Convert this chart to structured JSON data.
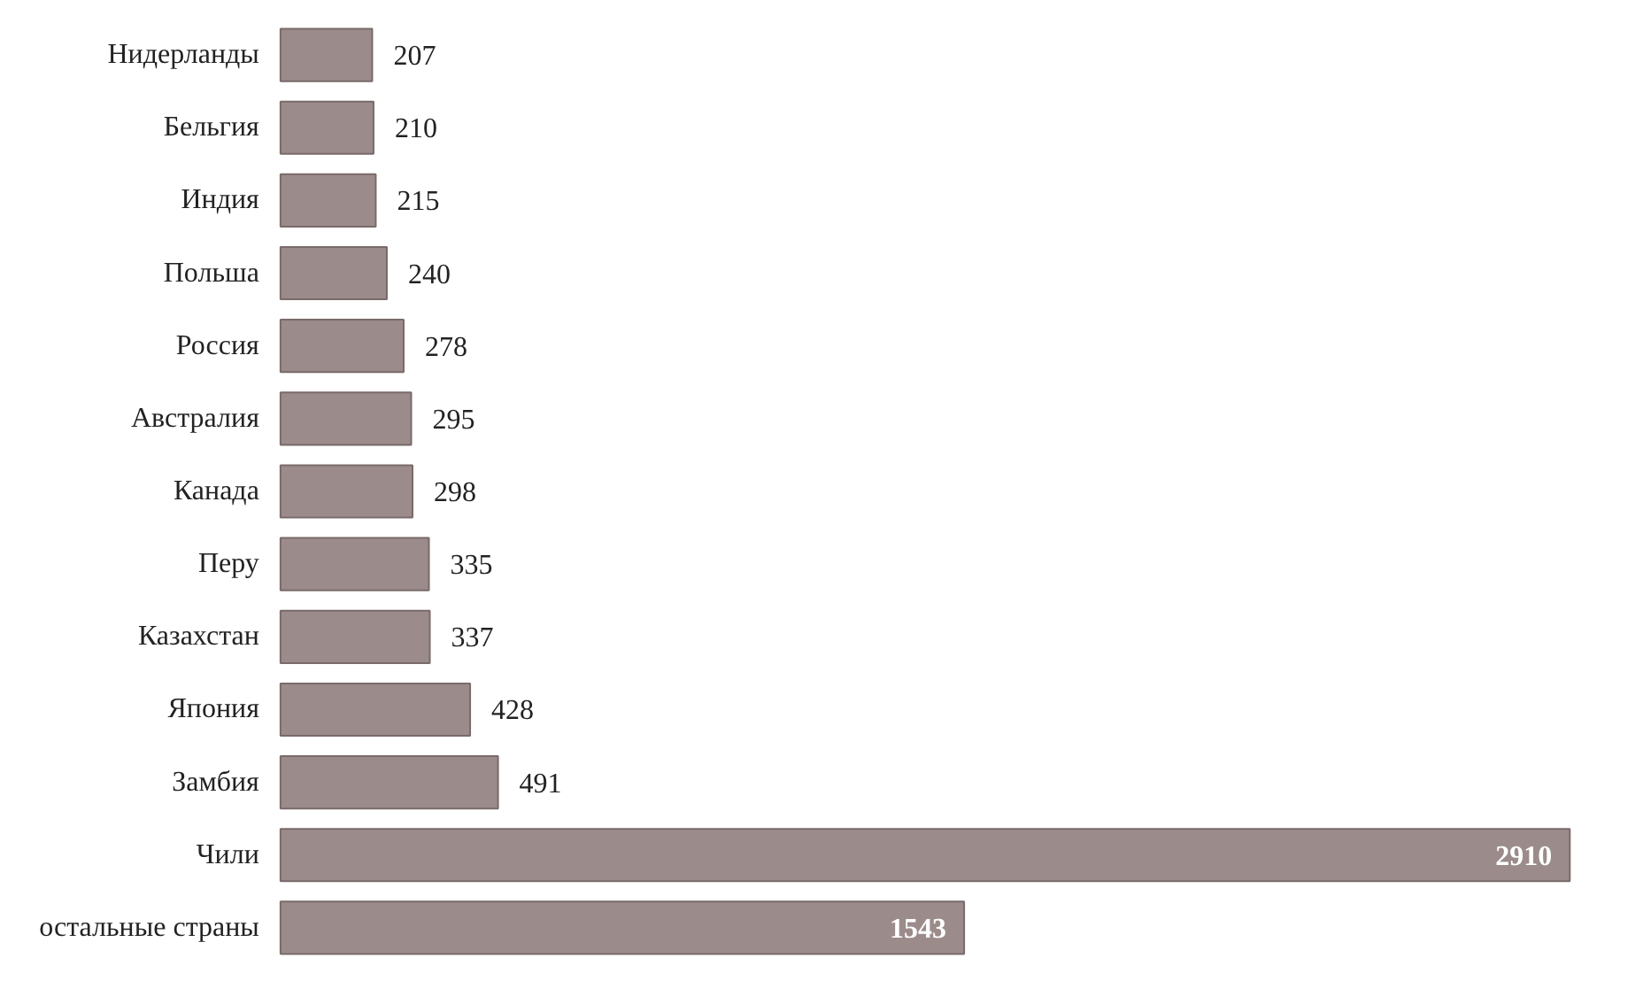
{
  "chart_data": {
    "type": "bar",
    "orientation": "horizontal",
    "data_labels": true,
    "grid": false,
    "tick_labels": "y",
    "categories": [
      "Нидерланды",
      "Бельгия",
      "Индия",
      "Польша",
      "Россия",
      "Австралия",
      "Канада",
      "Перу",
      "Казахстан",
      "Япония",
      "Замбия",
      "Чили",
      "остальные страны"
    ],
    "series": [
      {
        "color": "#9c8b8b",
        "values": [
          207,
          210,
          215,
          240,
          278,
          295,
          298,
          335,
          337,
          428,
          491,
          2910,
          1543
        ]
      }
    ]
  }
}
